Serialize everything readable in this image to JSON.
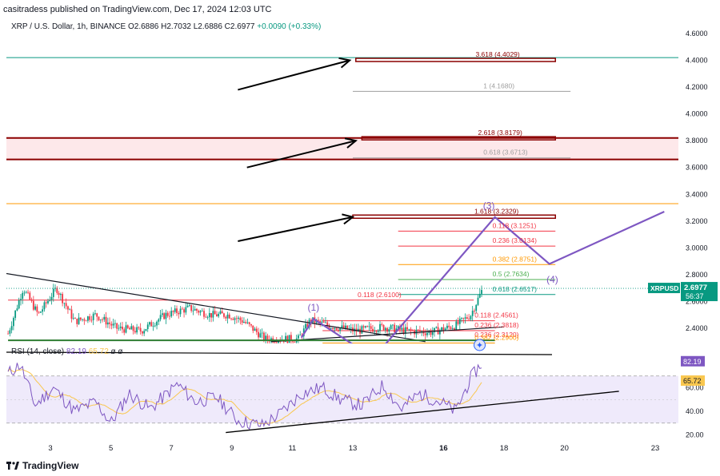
{
  "header": {
    "text": "casitradess published on TradingView.com, Dec 17, 2024 12:03 UTC"
  },
  "symbol": {
    "name": "XRP / U.S. Dollar, 1h, BINANCE",
    "open": "O2.6886",
    "high": "H2.7032",
    "low": "L2.6886",
    "close": "C2.6977",
    "change": "+0.0090 (+0.33%)"
  },
  "price_tag": {
    "ticker": "XRPUSD",
    "price": "2.6977",
    "countdown": "56:37"
  },
  "rsi": {
    "label": "RSI (14, close)",
    "value": "82.19",
    "ma": "65.72",
    "extra": "ø ø",
    "tag_value": "82.19",
    "tag_ma": "65.72"
  },
  "footer": {
    "brand": "TradingView"
  },
  "colors": {
    "up": "#089981",
    "down": "#f23645",
    "rsi": "#7e57c2",
    "rsi_ma": "#f9c74f",
    "zone": "#8b0000",
    "wave": "#7e57c2"
  },
  "chart_data": [
    {
      "type": "candlestick",
      "title": "XRP / U.S. Dollar, 1h, BINANCE",
      "xlabel": "",
      "ylabel": "",
      "x_ticks": [
        "3",
        "5",
        "7",
        "9",
        "11",
        "13",
        "16",
        "18",
        "20",
        "23"
      ],
      "y_ticks": [
        "4.6000",
        "4.4000",
        "4.2000",
        "4.0000",
        "3.8000",
        "3.6000",
        "3.4000",
        "3.2000",
        "3.0000",
        "2.8000",
        "2.6000",
        "2.4000"
      ],
      "ylim": [
        2.3,
        4.7
      ],
      "price_path": [
        {
          "d": 1.6,
          "v": 2.36
        },
        {
          "d": 2.1,
          "v": 2.7
        },
        {
          "d": 2.6,
          "v": 2.5
        },
        {
          "d": 3.2,
          "v": 2.7
        },
        {
          "d": 3.8,
          "v": 2.45
        },
        {
          "d": 4.5,
          "v": 2.5
        },
        {
          "d": 5.2,
          "v": 2.4
        },
        {
          "d": 6.0,
          "v": 2.38
        },
        {
          "d": 6.8,
          "v": 2.5
        },
        {
          "d": 7.6,
          "v": 2.55
        },
        {
          "d": 8.3,
          "v": 2.5
        },
        {
          "d": 8.9,
          "v": 2.5
        },
        {
          "d": 9.4,
          "v": 2.45
        },
        {
          "d": 10.1,
          "v": 2.32
        },
        {
          "d": 11.2,
          "v": 2.32
        },
        {
          "d": 11.6,
          "v": 2.46
        },
        {
          "d": 12.2,
          "v": 2.42
        },
        {
          "d": 13.1,
          "v": 2.38
        },
        {
          "d": 14.0,
          "v": 2.41
        },
        {
          "d": 14.8,
          "v": 2.38
        },
        {
          "d": 15.6,
          "v": 2.37
        },
        {
          "d": 16.4,
          "v": 2.42
        },
        {
          "d": 16.9,
          "v": 2.5
        },
        {
          "d": 17.3,
          "v": 2.6977
        }
      ],
      "levels": [
        {
          "label": "3.618 (4.4029)",
          "value": 4.4029,
          "color": "#8b0000",
          "d1": 13.1,
          "d2": 19.7,
          "thick": true
        },
        {
          "label": "1 (4.1680)",
          "value": 4.168,
          "color": "#9e9e9e",
          "d1": 13.0,
          "d2": 20.2
        },
        {
          "label": "2.618 (3.8179)",
          "value": 3.8179,
          "color": "#8b0000",
          "d1": 13.3,
          "d2": 19.7,
          "thick": true
        },
        {
          "label": "0.618 (3.6713)",
          "value": 3.6713,
          "color": "#9e9e9e",
          "d1": 13.0,
          "d2": 20.2
        },
        {
          "label": "1.618 (3.2329)",
          "value": 3.2329,
          "color": "#8b0000",
          "d1": 13.0,
          "d2": 19.7,
          "thick": true
        },
        {
          "label": "0.118 (3.1251)",
          "value": 3.1251,
          "color": "#f23645",
          "d1": 14.5,
          "d2": 19.7
        },
        {
          "label": "0.236 (3.0134)",
          "value": 3.0134,
          "color": "#f23645",
          "d1": 14.5,
          "d2": 19.7
        },
        {
          "label": "0.382 (2.8751)",
          "value": 2.8751,
          "color": "#ff9800",
          "d1": 14.5,
          "d2": 19.7
        },
        {
          "label": "0.5 (2.7634)",
          "value": 2.7634,
          "color": "#4caf50",
          "d1": 14.5,
          "d2": 19.7
        },
        {
          "label": "0.618 (2.6517)",
          "value": 2.6517,
          "color": "#089981",
          "d1": 14.5,
          "d2": 19.7
        },
        {
          "label": "0.118 (2.6100)",
          "value": 2.61,
          "color": "#f23645",
          "d1": 1.6,
          "d2": 17.0
        },
        {
          "label": "0.118 (2.4561)",
          "value": 2.4561,
          "color": "#f23645",
          "d1": 12.0,
          "d2": 17.7
        },
        {
          "label": "0.236 (2.3818)",
          "value": 2.3818,
          "color": "#f23645",
          "d1": 12.0,
          "d2": 17.7
        },
        {
          "label": "0.236 (2.3120)",
          "value": 2.312,
          "color": "#f23645",
          "d1": 12.0,
          "d2": 14.1
        },
        {
          "label": "0.382 (2.2900)",
          "value": 2.29,
          "color": "#ff9800",
          "d1": 12.0,
          "d2": 17.7
        }
      ],
      "zone": {
        "from": 3.66,
        "to": 3.82,
        "color": "#8b0000"
      },
      "horizontal_lines": [
        {
          "value": 4.42,
          "color": "#089981"
        },
        {
          "value": 3.33,
          "color": "#ff9800"
        }
      ],
      "wave_path": [
        {
          "d": 11.3,
          "v": 2.33
        },
        {
          "d": 11.7,
          "v": 2.47
        },
        {
          "d": 13.0,
          "v": 2.28
        },
        {
          "d": 14.0,
          "v": 2.26
        },
        {
          "d": 17.7,
          "v": 3.23
        },
        {
          "d": 19.5,
          "v": 2.88
        },
        {
          "d": 23.3,
          "v": 3.27
        }
      ],
      "wave_labels": [
        {
          "text": "(1)",
          "d": 11.7,
          "v": 2.53
        },
        {
          "text": "(3)",
          "d": 17.5,
          "v": 3.29
        },
        {
          "text": "(4)",
          "d": 19.6,
          "v": 2.74
        }
      ],
      "trendlines": [
        {
          "d1": 1.5,
          "v1": 2.81,
          "d2": 15.4,
          "v2": 2.3,
          "color": "#131722"
        },
        {
          "d1": 10.3,
          "v1": 2.3,
          "d2": 18.0,
          "v2": 2.41,
          "color": "#131722"
        }
      ],
      "arrows": [
        {
          "d1": 9.2,
          "v1": 4.18,
          "d2": 12.9,
          "v2": 4.4
        },
        {
          "d1": 9.5,
          "v1": 3.6,
          "d2": 13.1,
          "v2": 3.8
        },
        {
          "d1": 9.2,
          "v1": 3.05,
          "d2": 13.0,
          "v2": 3.23
        }
      ]
    },
    {
      "type": "line",
      "title": "RSI (14, close)",
      "y_ticks": [
        "60.00",
        "40.00",
        "20.00"
      ],
      "ylim": [
        18,
        95
      ],
      "band": [
        30,
        70
      ],
      "series": [
        {
          "name": "RSI",
          "color": "#7e57c2",
          "points": [
            {
              "d": 1.6,
              "v": 72
            },
            {
              "d": 2.0,
              "v": 80
            },
            {
              "d": 2.5,
              "v": 45
            },
            {
              "d": 3.1,
              "v": 60
            },
            {
              "d": 3.8,
              "v": 40
            },
            {
              "d": 4.5,
              "v": 48
            },
            {
              "d": 5.0,
              "v": 30
            },
            {
              "d": 5.6,
              "v": 55
            },
            {
              "d": 6.3,
              "v": 42
            },
            {
              "d": 7.2,
              "v": 63
            },
            {
              "d": 7.8,
              "v": 48
            },
            {
              "d": 8.5,
              "v": 52
            },
            {
              "d": 9.2,
              "v": 32
            },
            {
              "d": 10.0,
              "v": 28
            },
            {
              "d": 10.6,
              "v": 38
            },
            {
              "d": 11.3,
              "v": 55
            },
            {
              "d": 12.0,
              "v": 60
            },
            {
              "d": 12.6,
              "v": 50
            },
            {
              "d": 13.3,
              "v": 45
            },
            {
              "d": 14.0,
              "v": 62
            },
            {
              "d": 14.6,
              "v": 42
            },
            {
              "d": 15.2,
              "v": 55
            },
            {
              "d": 15.9,
              "v": 48
            },
            {
              "d": 16.4,
              "v": 40
            },
            {
              "d": 16.9,
              "v": 68
            },
            {
              "d": 17.3,
              "v": 82.19
            }
          ]
        }
      ],
      "trendline": {
        "d1": 8.8,
        "v1": 22,
        "d2": 21.8,
        "v2": 57
      },
      "x_ticks": [
        "3",
        "5",
        "7",
        "9",
        "11",
        "13",
        "16",
        "18",
        "20",
        "23"
      ]
    }
  ]
}
